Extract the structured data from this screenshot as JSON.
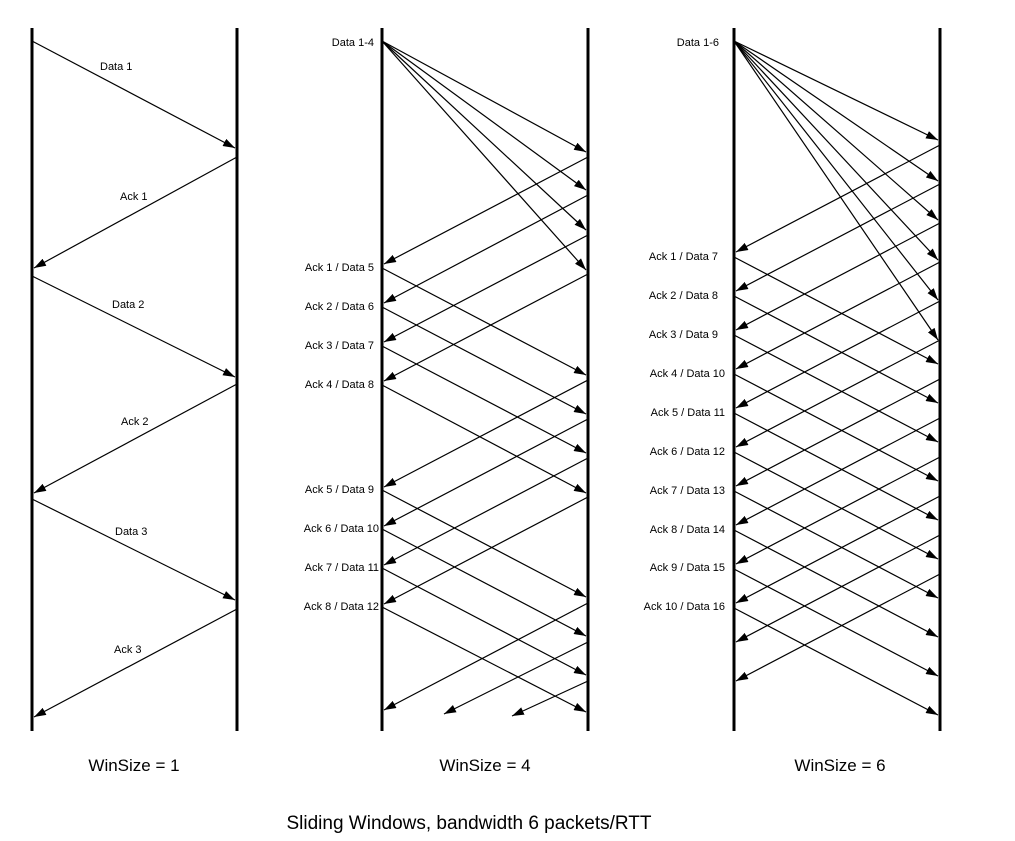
{
  "title": "Sliding Windows, bandwidth 6 packets/RTT",
  "panels": [
    {
      "caption": "WinSize = 1",
      "labels": [
        "Data 1",
        "Ack 1",
        "Data 2",
        "Ack 2",
        "Data 3",
        "Ack 3"
      ]
    },
    {
      "caption": "WinSize = 4",
      "labels": [
        "Data 1-4",
        "Ack 1 / Data 5",
        "Ack 2 / Data 6",
        "Ack 3 / Data 7",
        "Ack 4 / Data 8",
        "Ack 5 / Data 9",
        "Ack 6 / Data 10",
        "Ack 7 / Data 11",
        "Ack 8 / Data 12"
      ]
    },
    {
      "caption": "WinSize = 6",
      "labels": [
        "Data 1-6",
        "Ack 1 / Data 7",
        "Ack 2 / Data 8",
        "Ack 3 / Data 9",
        "Ack 4 / Data 10",
        "Ack 5 / Data 11",
        "Ack 6 / Data 12",
        "Ack 7 / Data 13",
        "Ack 8 / Data 14",
        "Ack 9 / Data 15",
        "Ack 10 / Data 16"
      ]
    }
  ]
}
